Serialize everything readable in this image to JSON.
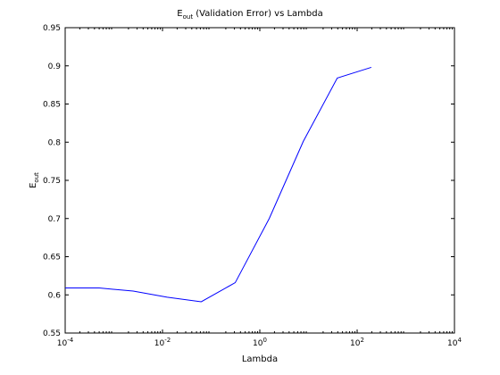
{
  "chart_data": {
    "type": "line",
    "title_main": "E",
    "title_sub": "out",
    "title_rest": " (Validation Error) vs Lambda",
    "xlabel": "Lambda",
    "ylabel_main": "E",
    "ylabel_sub": "out",
    "x_scale": "log",
    "xlim": [
      0.0001,
      10000
    ],
    "ylim": [
      0.55,
      0.95
    ],
    "grid": false,
    "legend": "none",
    "line_color": "#0000ff",
    "x_ticks": [
      {
        "base": "10",
        "exp": "-4",
        "value": 0.0001
      },
      {
        "base": "10",
        "exp": "-2",
        "value": 0.01
      },
      {
        "base": "10",
        "exp": "0",
        "value": 1
      },
      {
        "base": "10",
        "exp": "2",
        "value": 100
      },
      {
        "base": "10",
        "exp": "4",
        "value": 10000
      }
    ],
    "y_ticks": [
      "0.55",
      "0.6",
      "0.65",
      "0.7",
      "0.75",
      "0.8",
      "0.85",
      "0.9",
      "0.95"
    ],
    "series": [
      {
        "x": [
          0.0001,
          0.0005,
          0.0025,
          0.0125,
          0.0625,
          0.3125,
          1.5625,
          7.8125,
          39.0625,
          195.3125
        ],
        "y": [
          0.609,
          0.609,
          0.605,
          0.597,
          0.591,
          0.616,
          0.7,
          0.801,
          0.884,
          0.898
        ]
      }
    ]
  }
}
